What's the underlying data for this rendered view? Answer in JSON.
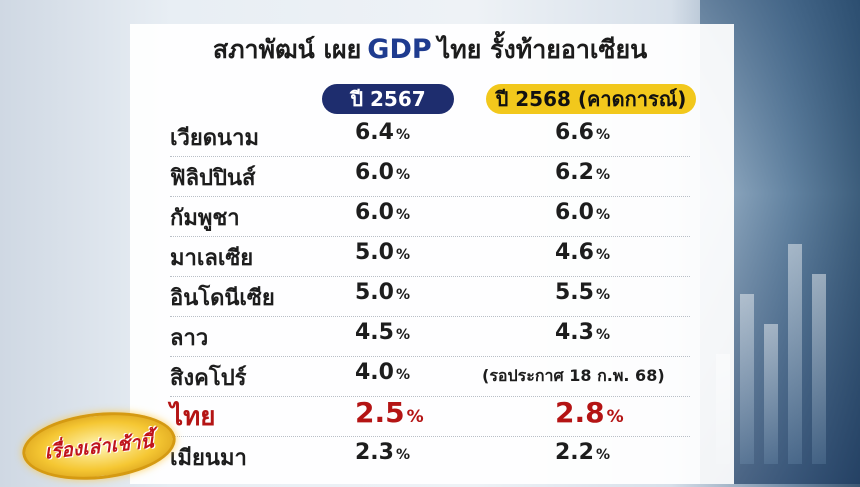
{
  "title": {
    "prefix": "สภาพัฒน์ เผย",
    "highlight": "GDP",
    "suffix": "ไทย รั้งท้ายอาเซียน"
  },
  "headers": {
    "col_2567": "ปี 2567",
    "col_2568": "ปี 2568 (คาดการณ์)"
  },
  "colors": {
    "header_2567_bg": "#1e2d6e",
    "header_2568_bg": "#f2c81c",
    "thai_highlight": "#b41414",
    "gdp_blue": "#1e3b8f"
  },
  "rows": [
    {
      "country": "เวียดนาม",
      "v2567": "6.4",
      "v2568": "6.6"
    },
    {
      "country": "ฟิลิปปินส์",
      "v2567": "6.0",
      "v2568": "6.2"
    },
    {
      "country": "กัมพูชา",
      "v2567": "6.0",
      "v2568": "6.0"
    },
    {
      "country": "มาเลเซีย",
      "v2567": "5.0",
      "v2568": "4.6"
    },
    {
      "country": "อินโดนีเซีย",
      "v2567": "5.0",
      "v2568": "5.5"
    },
    {
      "country": "ลาว",
      "v2567": "4.5",
      "v2568": "4.3"
    },
    {
      "country": "สิงคโปร์",
      "v2567": "4.0",
      "v2568_note": "(รอประกาศ 18 ก.พ. 68)"
    },
    {
      "country": "ไทย",
      "v2567": "2.5",
      "v2568": "2.8"
    },
    {
      "country": "เมียนมา",
      "v2567": "2.3",
      "v2568": "2.2"
    }
  ],
  "unit": "%",
  "logo": {
    "icon": "program-logo",
    "text": "เรื่องเล่าเช้านี้"
  }
}
